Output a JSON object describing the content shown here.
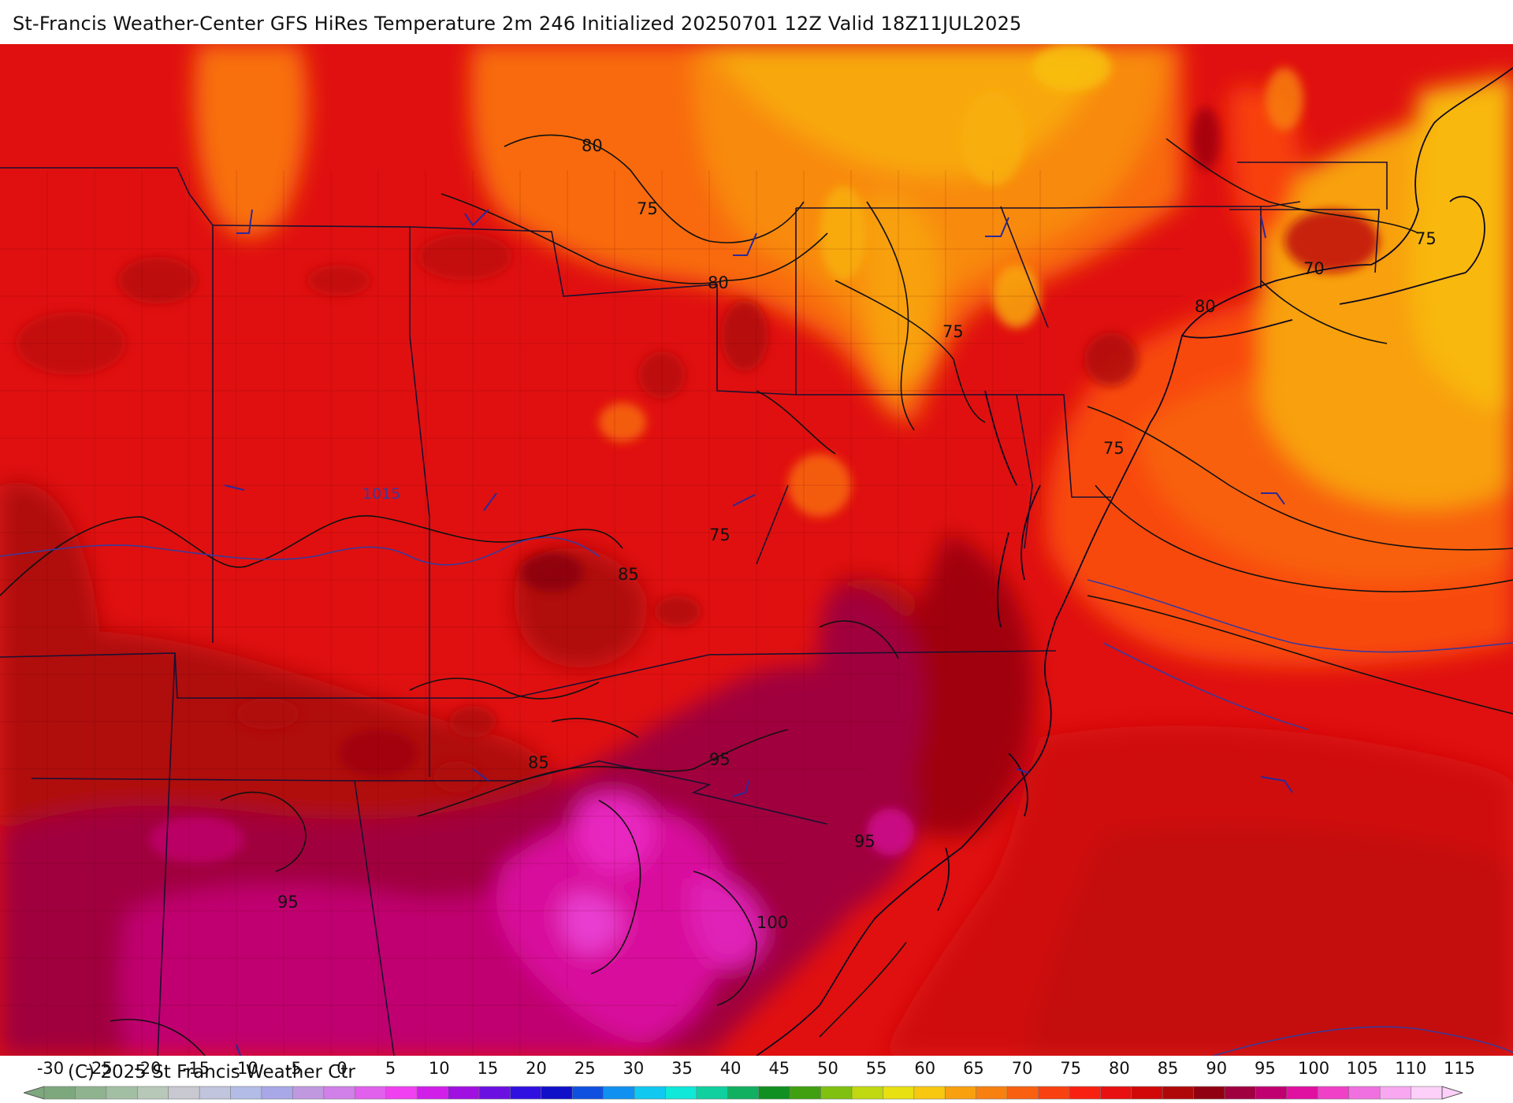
{
  "title": "St-Francis Weather-Center GFS HiRes Temperature 2m  246 Initialized 20250701 12Z Valid 18Z11JUL2025",
  "copyright": "(C) 2025 St Francis Weather Ctr",
  "contour_labels": {
    "t80_a": "80",
    "t75_a": "75",
    "t80_b": "80",
    "t75_b": "75",
    "t75_c": "75",
    "t70": "70",
    "t80_c": "80",
    "t75_d": "75",
    "t75_e": "75",
    "t85_a": "85",
    "t85_b": "85",
    "t95_a": "95",
    "t95_b": "95",
    "t95_c": "95",
    "t100": "100"
  },
  "pressure_label": "1015",
  "legend": {
    "ticks": [
      "-30",
      "-25",
      "-20",
      "-15",
      "-10",
      "-5",
      "0",
      "5",
      "10",
      "15",
      "20",
      "25",
      "30",
      "35",
      "40",
      "45",
      "50",
      "55",
      "60",
      "65",
      "70",
      "75",
      "80",
      "85",
      "90",
      "95",
      "100",
      "105",
      "110",
      "115"
    ],
    "colors": [
      "#7da87d",
      "#8fb38f",
      "#a3bfa3",
      "#b8c8b8",
      "#c8c8d0",
      "#c0c4dc",
      "#b2bce6",
      "#a8a8e8",
      "#c098e0",
      "#d080e8",
      "#e060ec",
      "#f040f0",
      "#d020e8",
      "#a010e0",
      "#6a10e0",
      "#3010e0",
      "#1010c8",
      "#1050e0",
      "#1090f0",
      "#10c8f0",
      "#10e8d8",
      "#10d0a0",
      "#10b060",
      "#109020",
      "#40a010",
      "#80c010",
      "#c0d810",
      "#e8e010",
      "#f8c810",
      "#f8a010",
      "#f88010",
      "#f86010",
      "#f84010",
      "#f82010",
      "#e81010",
      "#d00808",
      "#b00808",
      "#900010",
      "#a00040",
      "#c00070",
      "#e010a0",
      "#f040c8",
      "#f070e0",
      "#f8a8f0",
      "#fcd0f8"
    ],
    "colorscale_name": "temperature °F"
  }
}
